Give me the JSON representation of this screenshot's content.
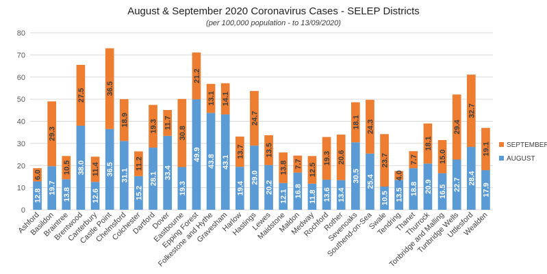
{
  "chart_data": {
    "type": "bar",
    "stacked": true,
    "title": "August & September 2020 Coronavirus Cases - SELEP Districts",
    "subtitle": "(per 100,000 population - to 13/09/2020)",
    "xlabel": "",
    "ylabel": "",
    "ylim": [
      0,
      80
    ],
    "yticks": [
      0,
      10,
      20,
      30,
      40,
      50,
      60,
      70,
      80
    ],
    "grid": true,
    "legend_position": "right",
    "categories": [
      "Ashford",
      "Basildon",
      "Braintree",
      "Brentwood",
      "Canterbury",
      "Castle Point",
      "Chelmsford",
      "Colchester",
      "Dartford",
      "Dover",
      "Eastbourne",
      "Epping Forest",
      "Folkestone and Hythe",
      "Gravesham",
      "Harlow",
      "Hastings",
      "Lewes",
      "Maidstone",
      "Maldon",
      "Medway",
      "Rochford",
      "Rother",
      "Sevenoaks",
      "Southend-on-Sea",
      "Swale",
      "Tendring",
      "Thanet",
      "Thurrock",
      "Tonbridge and Malling",
      "Tunbridge Wells",
      "Uttlesford",
      "Wealden"
    ],
    "series": [
      {
        "name": "AUGUST",
        "color": "#5b9bd5",
        "values": [
          12.8,
          19.7,
          13.8,
          38.0,
          12.6,
          36.5,
          31.1,
          15.2,
          28.1,
          33.4,
          19.3,
          49.9,
          43.8,
          43.1,
          19.4,
          29.0,
          20.2,
          12.1,
          16.8,
          11.8,
          13.6,
          13.4,
          30.5,
          25.4,
          10.5,
          13.5,
          18.8,
          20.9,
          16.5,
          22.7,
          28.4,
          17.9
        ]
      },
      {
        "name": "SEPTEMBER",
        "color": "#ed7d31",
        "values": [
          6.0,
          29.3,
          10.5,
          27.5,
          11.4,
          36.5,
          18.9,
          11.2,
          19.3,
          11.7,
          30.8,
          21.2,
          13.1,
          14.1,
          13.7,
          24.7,
          13.5,
          13.8,
          7.7,
          12.5,
          19.3,
          20.6,
          18.1,
          24.3,
          23.7,
          4.0,
          7.7,
          18.1,
          15.0,
          29.4,
          32.7,
          19.1
        ]
      }
    ],
    "value_labels": {
      "AUGUST": [
        "12.8",
        "19.7",
        "13.8",
        "38.0",
        "12.6",
        "36.5",
        "31.1",
        "15.2",
        "28.1",
        "33.4",
        "19.3",
        "49.9",
        "43.8",
        "43.1",
        "19.4",
        "29.0",
        "20.2",
        "12.1",
        "16.8",
        "11.8",
        "13.6",
        "13.4",
        "30.5",
        "25.4",
        "10.5",
        "13.5",
        "18.8",
        "20.9",
        "16.5",
        "22.7",
        "28.4",
        "17.9"
      ],
      "SEPTEMBER": [
        "6.0",
        "29.3",
        "10.5",
        "27.5",
        "11.4",
        "36.5",
        "18.9",
        "11.2",
        "19.3",
        "11.7",
        "30.8",
        "21.2",
        "13.1",
        "14.1",
        "13.7",
        "24.7",
        "13.5",
        "13.8",
        "7.7",
        "12.5",
        "19.3",
        "20.6",
        "18.1",
        "24.3",
        "23.7",
        "4.0",
        "7.7",
        "18.1",
        "15.0",
        "29.4",
        "32.7",
        "19.1"
      ]
    }
  }
}
